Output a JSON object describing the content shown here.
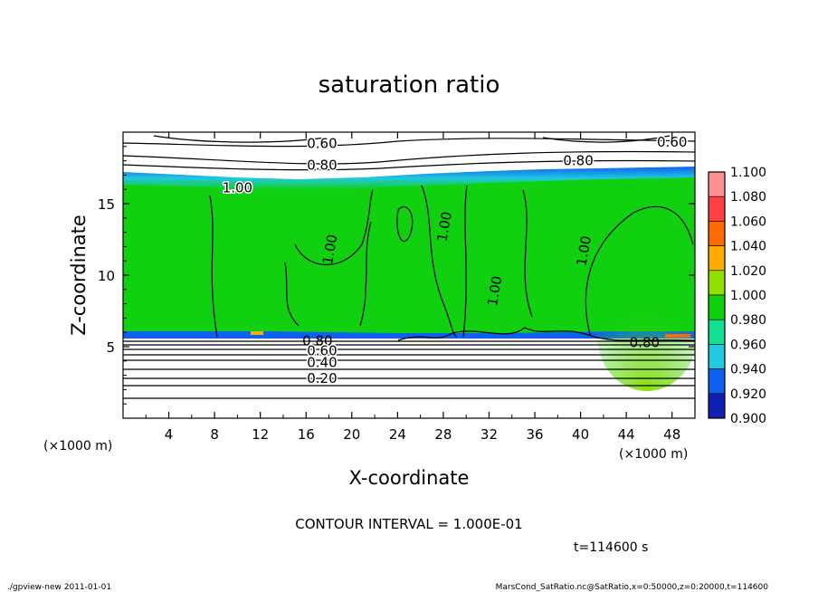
{
  "chart_data": {
    "type": "heatmap",
    "title": "saturation ratio",
    "xlabel": "X-coordinate",
    "ylabel": "Z-coordinate",
    "x_unit": "(×1000 m)",
    "z_unit": "(×1000 m)",
    "xlim": [
      0,
      50
    ],
    "ylim": [
      0,
      20
    ],
    "x_ticks": [
      "4",
      "8",
      "12",
      "16",
      "20",
      "24",
      "28",
      "32",
      "36",
      "40",
      "44",
      "48"
    ],
    "y_ticks": [
      "5",
      "10",
      "15"
    ],
    "contour_interval_text": "CONTOUR INTERVAL = 1.000E-01",
    "time_text": "t=114600 s",
    "colorbar": {
      "levels": [
        "1.100",
        "1.080",
        "1.060",
        "1.040",
        "1.020",
        "1.000",
        "0.980",
        "0.960",
        "0.940",
        "0.920",
        "0.900"
      ],
      "colors": [
        "#ff9090",
        "#ff4040",
        "#ff6a00",
        "#ffaa00",
        "#8fe000",
        "#10d010",
        "#10e090",
        "#20c8e0",
        "#1060f0",
        "#1020b0",
        "#6010a0"
      ]
    },
    "contour_labels": [
      {
        "text": "0.60",
        "x": 17.4,
        "z": 19.2
      },
      {
        "text": "0.60",
        "x": 48.0,
        "z": 19.3
      },
      {
        "text": "0.80",
        "x": 17.4,
        "z": 17.7
      },
      {
        "text": "0.80",
        "x": 39.8,
        "z": 18.0
      },
      {
        "text": "1.00",
        "x": 10.0,
        "z": 16.1
      },
      {
        "text": "1.00",
        "x": 18.1,
        "z": 11.8
      },
      {
        "text": "1.00",
        "x": 28.1,
        "z": 13.4
      },
      {
        "text": "1.00",
        "x": 32.5,
        "z": 8.9
      },
      {
        "text": "1.00",
        "x": 40.3,
        "z": 11.7
      },
      {
        "text": "0.80",
        "x": 17.0,
        "z": 5.4
      },
      {
        "text": "0.80",
        "x": 45.6,
        "z": 5.3
      },
      {
        "text": "0.60",
        "x": 17.4,
        "z": 4.7
      },
      {
        "text": "0.40",
        "x": 17.4,
        "z": 3.9
      },
      {
        "text": "0.20",
        "x": 17.4,
        "z": 2.8
      }
    ],
    "colorbar_orientation": "vertical, right of plot"
  },
  "footer": {
    "left": "./gpview-new   2011-01-01",
    "right": "MarsCond_SatRatio.nc@SatRatio,x=0:50000,z=0:20000,t=114600"
  }
}
